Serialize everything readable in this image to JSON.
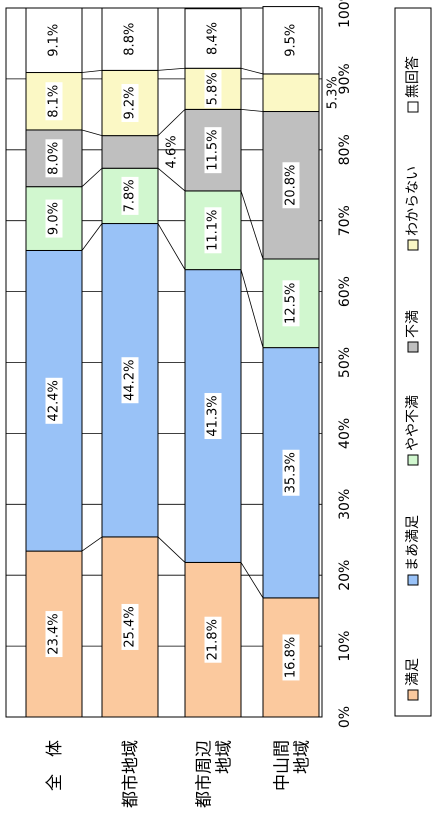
{
  "chart_data": {
    "type": "bar",
    "orientation": "horizontal-stacked-100",
    "rotated": "90deg-clockwise",
    "categories": [
      "全　体",
      "都市地域",
      "都市周辺\n地域",
      "中山間\n地域"
    ],
    "xlim": [
      0,
      100
    ],
    "ticks": [
      "0%",
      "10%",
      "20%",
      "30%",
      "40%",
      "50%",
      "60%",
      "70%",
      "80%",
      "90%",
      "100%"
    ],
    "grid": true,
    "legend_position": "right",
    "series": [
      {
        "name": "満足",
        "color": "#FBC99E",
        "values": [
          23.4,
          25.4,
          21.8,
          16.8
        ]
      },
      {
        "name": "まあ満足",
        "color": "#99C2F7",
        "values": [
          42.4,
          44.2,
          41.3,
          35.3
        ]
      },
      {
        "name": "やや不満",
        "color": "#D1F7CF",
        "values": [
          9.0,
          7.8,
          11.1,
          12.5
        ]
      },
      {
        "name": "不満",
        "color": "#BFBFBF",
        "values": [
          8.0,
          4.6,
          11.5,
          20.8
        ]
      },
      {
        "name": "わからない",
        "color": "#FBF8C5",
        "values": [
          8.1,
          9.2,
          5.8,
          5.3
        ]
      },
      {
        "name": "無回答",
        "color": "#FFFFFF",
        "values": [
          9.1,
          8.8,
          8.4,
          9.5
        ]
      }
    ],
    "data_labels": [
      [
        "23.4%",
        "42.4%",
        "9.0%",
        "8.0%",
        "8.1%",
        "9.1%"
      ],
      [
        "25.4%",
        "44.2%",
        "7.8%",
        "4.6%",
        "9.2%",
        "8.8%"
      ],
      [
        "21.8%",
        "41.3%",
        "11.1%",
        "11.5%",
        "5.8%",
        "8.4%"
      ],
      [
        "16.8%",
        "35.3%",
        "12.5%",
        "20.8%",
        "5.3%",
        "9.5%"
      ]
    ]
  }
}
